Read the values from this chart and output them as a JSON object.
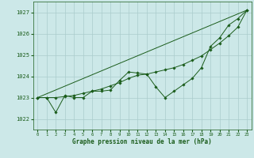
{
  "background_color": "#cce8e8",
  "grid_color": "#aacccc",
  "line_color": "#1a5c1a",
  "xlabel": "Graphe pression niveau de la mer (hPa)",
  "xlim": [
    -0.5,
    23.5
  ],
  "ylim": [
    1021.5,
    1027.5
  ],
  "yticks": [
    1022,
    1023,
    1024,
    1025,
    1026,
    1027
  ],
  "xticks": [
    0,
    1,
    2,
    3,
    4,
    5,
    6,
    7,
    8,
    9,
    10,
    11,
    12,
    13,
    14,
    15,
    16,
    17,
    18,
    19,
    20,
    21,
    22,
    23
  ],
  "line1_x": [
    0,
    1,
    2,
    3,
    4,
    5,
    6,
    7,
    8,
    9,
    10,
    11,
    12,
    13,
    14,
    15,
    16,
    17,
    18,
    19,
    20,
    21,
    22,
    23
  ],
  "line1_y": [
    1023.0,
    1023.0,
    1022.3,
    1023.1,
    1023.0,
    1023.0,
    1023.3,
    1023.3,
    1023.35,
    1023.8,
    1024.2,
    1024.15,
    1024.1,
    1023.5,
    1023.0,
    1023.3,
    1023.6,
    1023.9,
    1024.4,
    1025.4,
    1025.8,
    1026.4,
    1026.7,
    1027.1
  ],
  "line2_x": [
    0,
    1,
    2,
    3,
    4,
    5,
    6,
    7,
    8,
    9,
    10,
    11,
    12,
    13,
    14,
    15,
    16,
    17,
    18,
    19,
    20,
    21,
    22,
    23
  ],
  "line2_y": [
    1023.0,
    1023.0,
    1023.0,
    1023.05,
    1023.1,
    1023.2,
    1023.3,
    1023.4,
    1023.55,
    1023.7,
    1023.9,
    1024.05,
    1024.1,
    1024.2,
    1024.3,
    1024.4,
    1024.55,
    1024.75,
    1024.95,
    1025.25,
    1025.55,
    1025.9,
    1026.3,
    1027.1
  ],
  "line3_x": [
    0,
    23
  ],
  "line3_y": [
    1023.0,
    1027.1
  ],
  "marker_size": 1.8,
  "line_width": 0.7
}
